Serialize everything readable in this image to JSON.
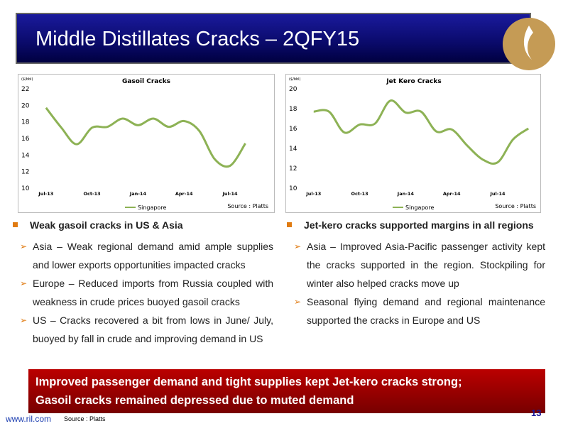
{
  "header": {
    "title": "Middle Distillates Cracks – 2QFY15"
  },
  "chart_data": [
    {
      "type": "line",
      "title": "Gasoil Cracks",
      "y_unit": "($/bbl)",
      "categories": [
        "Jul-13",
        null,
        null,
        "Oct-13",
        null,
        null,
        "Jan-14",
        null,
        null,
        "Apr-14",
        null,
        null,
        "Jul-14",
        null
      ],
      "series": [
        {
          "name": "Singapore",
          "color": "#8db255",
          "values": [
            19.7,
            17.3,
            15.3,
            17.3,
            17.4,
            18.4,
            17.6,
            18.4,
            17.4,
            18.1,
            16.9,
            13.5,
            12.7,
            15.4
          ]
        }
      ],
      "ylim": [
        10,
        22
      ],
      "yticks": [
        10,
        12,
        14,
        16,
        18,
        20,
        22
      ],
      "source": "Source : Platts"
    },
    {
      "type": "line",
      "title": "Jet Kero Cracks",
      "y_unit": "($/bbl)",
      "categories": [
        "Jul-13",
        null,
        null,
        "Oct-13",
        null,
        null,
        "Jan-14",
        null,
        null,
        "Apr-14",
        null,
        null,
        "Jul-14",
        null,
        null
      ],
      "series": [
        {
          "name": "Singapore",
          "color": "#8db255",
          "values": [
            17.7,
            17.7,
            15.6,
            16.4,
            16.5,
            18.8,
            17.6,
            17.7,
            15.7,
            15.9,
            14.3,
            12.9,
            12.6,
            14.9,
            16.0
          ]
        }
      ],
      "ylim": [
        10,
        20
      ],
      "yticks": [
        10,
        12,
        14,
        16,
        18,
        20
      ],
      "source": "Source : Platts"
    }
  ],
  "left": {
    "heading": "Weak gasoil cracks in US & Asia",
    "items": [
      "Asia – Weak regional demand amid ample supplies and lower exports opportunities impacted cracks",
      "Europe – Reduced imports from Russia coupled with weakness in crude prices buoyed gasoil cracks",
      "US – Cracks recovered a bit from lows in June/ July, buoyed by fall in crude and improving demand in US"
    ]
  },
  "right": {
    "heading": "Jet-kero cracks supported margins in all regions",
    "items": [
      "Asia – Improved Asia-Pacific passenger activity kept the cracks supported in the region. Stockpiling for winter also helped cracks move up",
      "Seasonal flying demand and regional maintenance supported the cracks in Europe and US"
    ]
  },
  "banner": {
    "lines": [
      "Improved passenger demand and tight supplies kept Jet-kero cracks strong;",
      "Gasoil cracks remained depressed due to muted demand"
    ]
  },
  "footer": {
    "url": "www.ril.com",
    "source": "Source : Platts",
    "page": "13"
  }
}
